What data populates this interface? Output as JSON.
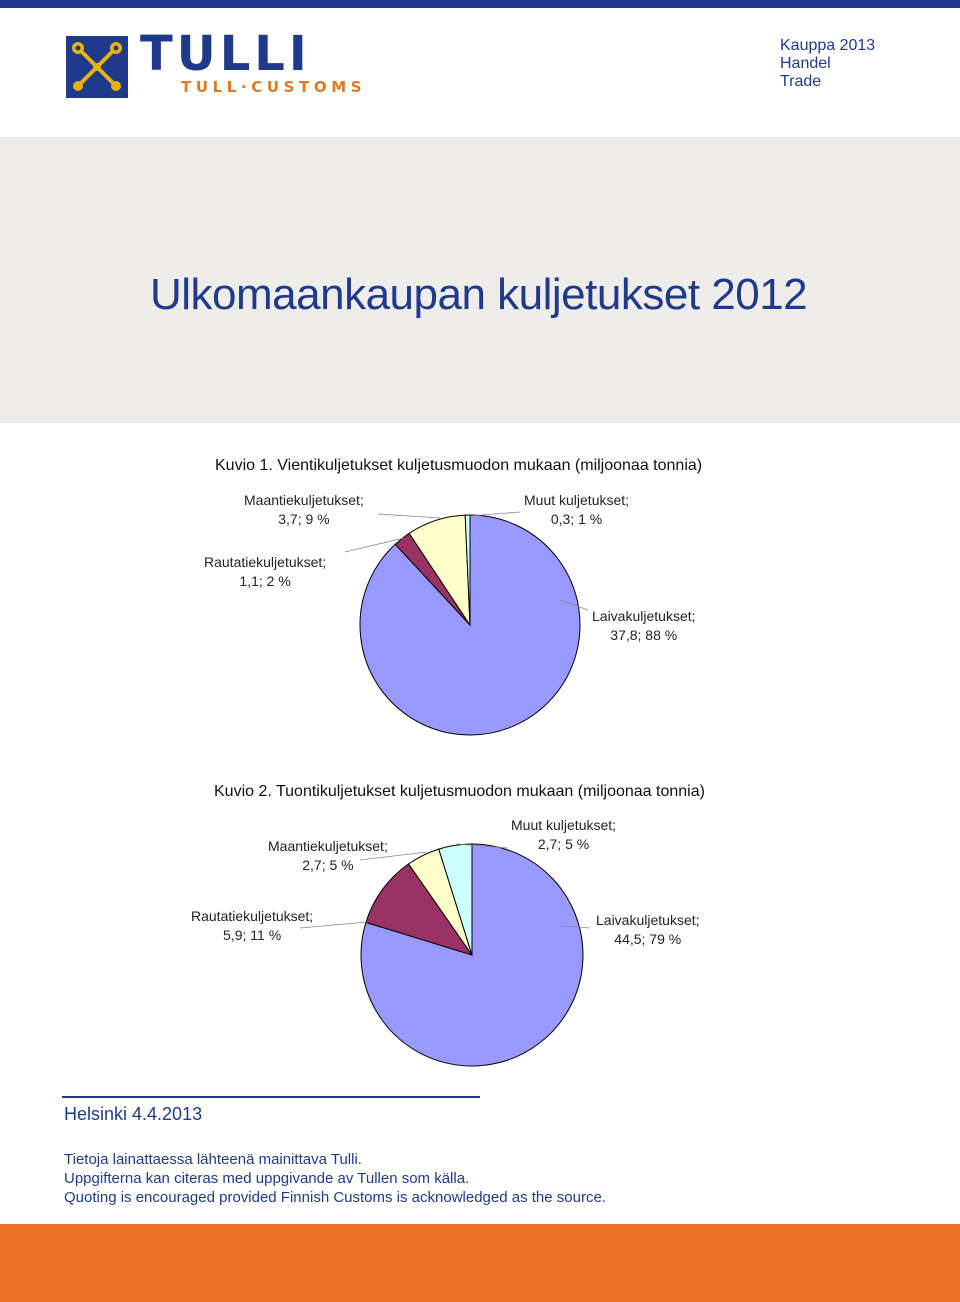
{
  "header": {
    "brand": "TULLI",
    "brand_sub": "TULL·CUSTOMS",
    "corner_lines": [
      "Kauppa 2013",
      "Handel",
      "Trade"
    ],
    "logo_icon": "customs-crossed-keys-icon"
  },
  "hero": {
    "title": "Ulkomaankaupan kuljetukset 2012"
  },
  "colors": {
    "navy": "#1f3a8a",
    "orange": "#f07226",
    "grey": "#eeedea"
  },
  "chart_data": [
    {
      "type": "pie",
      "title": "Kuvio 1. Vientikuljetukset kuljetusmuodon mukaan (miljoonaa tonnia)",
      "slices": [
        {
          "label": "Laivakuljetukset;",
          "value": 37.8,
          "value_label": "37,8; 88 %",
          "color": "#9999ff"
        },
        {
          "label": "Rautatiekuljetukset;",
          "value": 1.1,
          "value_label": "1,1; 2 %",
          "color": "#993366"
        },
        {
          "label": "Maantiekuljetukset;",
          "value": 3.7,
          "value_label": "3,7; 9 %",
          "color": "#ffffcc"
        },
        {
          "label": "Muut kuljetukset;",
          "value": 0.3,
          "value_label": "0,3; 1 %",
          "color": "#ccffff"
        }
      ]
    },
    {
      "type": "pie",
      "title": "Kuvio 2. Tuontikuljetukset kuljetusmuodon mukaan (miljoonaa tonnia)",
      "slices": [
        {
          "label": "Laivakuljetukset;",
          "value": 44.5,
          "value_label": "44,5; 79 %",
          "color": "#9999ff"
        },
        {
          "label": "Rautatiekuljetukset;",
          "value": 5.9,
          "value_label": "5,9; 11 %",
          "color": "#993366"
        },
        {
          "label": "Maantiekuljetukset;",
          "value": 2.7,
          "value_label": "2,7; 5 %",
          "color": "#ffffcc"
        },
        {
          "label": "Muut kuljetukset;",
          "value": 2.7,
          "value_label": "2,7; 5 %",
          "color": "#ccffff"
        }
      ]
    }
  ],
  "footer": {
    "date": "Helsinki 4.4.2013",
    "lines": [
      "Tietoja lainattaessa lähteenä mainittava Tulli.",
      "Uppgifterna kan citeras med uppgivande av Tullen som källa.",
      "Quoting is encouraged provided Finnish Customs is acknowledged as the source."
    ]
  }
}
